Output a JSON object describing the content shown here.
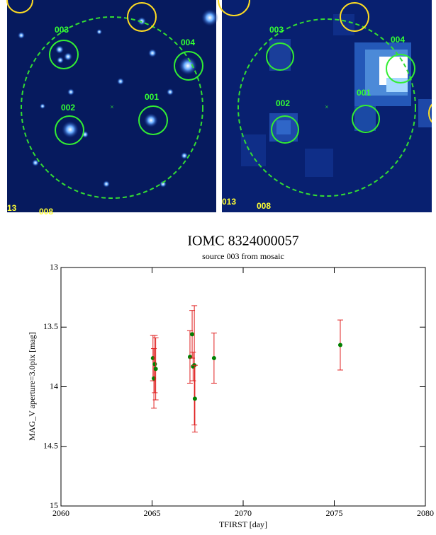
{
  "images": [
    {
      "labels": [
        "003",
        "004",
        "002",
        "001",
        "13",
        "008"
      ]
    },
    {
      "labels": [
        "003",
        "004",
        "002",
        "001",
        "013",
        "008"
      ]
    }
  ],
  "chart_data": {
    "type": "scatter",
    "title": "IOMC 8324000057",
    "subtitle": "source 003 from mosaic",
    "x_label": "TFIRST [day]",
    "y_label": "MAG_V aperture=3.0pix [mag]",
    "xlim": [
      2060,
      2080
    ],
    "xticks": [
      2060,
      2065,
      2070,
      2075,
      2080
    ],
    "ylim": [
      13,
      15
    ],
    "yticks": [
      13,
      13.5,
      14,
      14.5,
      15
    ],
    "y_inverted": true,
    "color": "#008000",
    "error_color": "#e02020",
    "x": [
      2065.05,
      2065.1,
      2065.15,
      2065.2,
      2067.08,
      2067.2,
      2067.25,
      2067.32,
      2067.35,
      2068.4,
      2075.33
    ],
    "values": [
      13.76,
      13.93,
      13.81,
      13.85,
      13.75,
      13.56,
      13.83,
      13.82,
      14.1,
      13.76,
      13.65
    ],
    "errors": [
      0.19,
      0.25,
      0.24,
      0.26,
      0.22,
      0.2,
      0.12,
      0.5,
      0.28,
      0.21,
      0.21
    ]
  }
}
